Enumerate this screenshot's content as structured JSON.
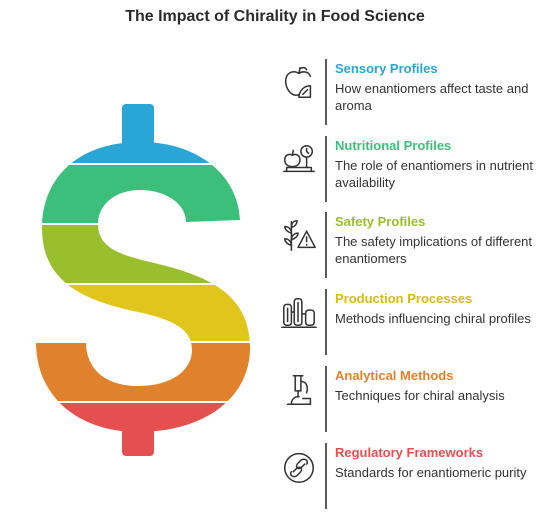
{
  "title": "The Impact of Chirality in Food Science",
  "items": [
    {
      "title": "Sensory Profiles",
      "desc": "How enantiomers affect taste and aroma",
      "color": "#2aa6d6",
      "icon": "apple-slice-icon"
    },
    {
      "title": "Nutritional Profiles",
      "desc": "The role of enantiomers in nutrient availability",
      "color": "#3cbf7b",
      "icon": "scale-apple-icon"
    },
    {
      "title": "Safety Profiles",
      "desc": "The safety implications of different enantiomers",
      "color": "#9abf2e",
      "icon": "plant-warning-icon"
    },
    {
      "title": "Production Processes",
      "desc": "Methods influencing chiral profiles",
      "color": "#e0c51c",
      "icon": "factory-icon"
    },
    {
      "title": "Analytical Methods",
      "desc": "Techniques for chiral analysis",
      "color": "#e0822c",
      "icon": "microscope-icon"
    },
    {
      "title": "Regulatory Frameworks",
      "desc": "Standards for enantiomeric purity",
      "color": "#e3504f",
      "icon": "link-circle-icon"
    }
  ]
}
